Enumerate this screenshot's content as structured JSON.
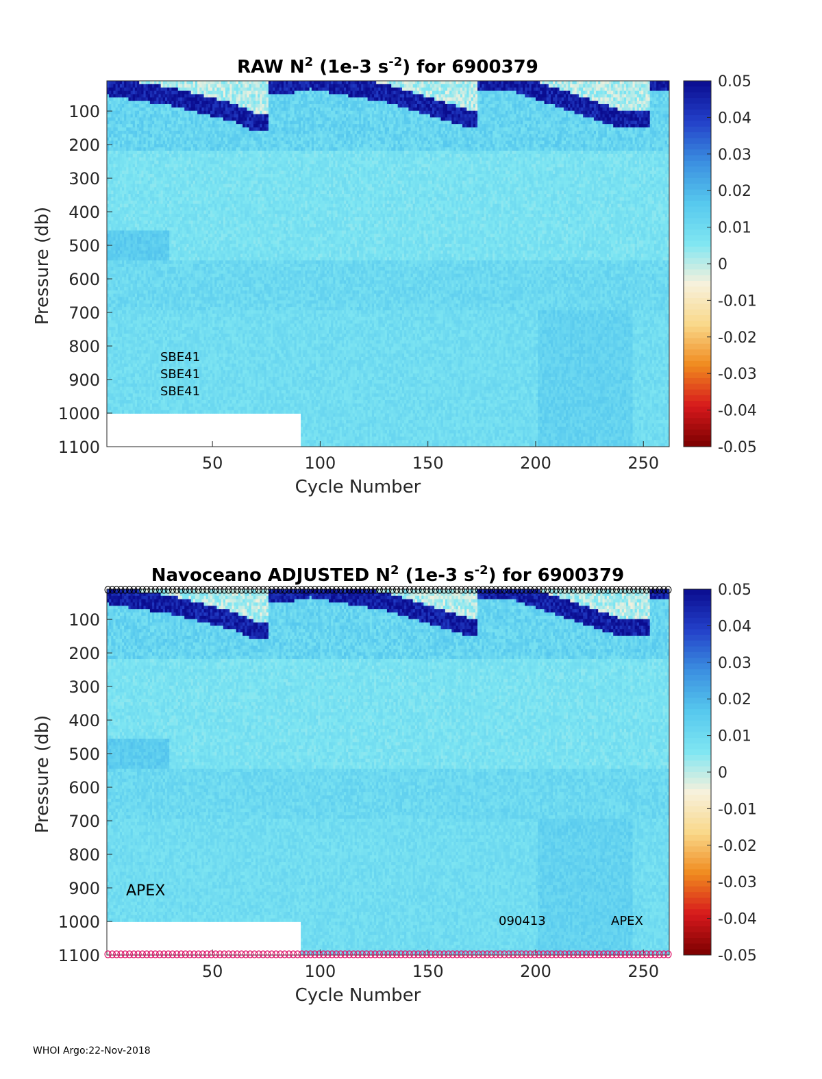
{
  "colormap": {
    "name": "jet-like diverging",
    "stops": [
      "#7a0000",
      "#d7191c",
      "#f08a1e",
      "#f9d88a",
      "#f7f1dc",
      "#7fe6f2",
      "#56c8ee",
      "#3b8fe0",
      "#2340c9",
      "#0a0c8f"
    ]
  },
  "chart_data": [
    {
      "type": "heatmap",
      "title": "RAW N² (1e-3 s⁻²) for 6900379",
      "title_parts": {
        "prefix": "RAW N",
        "exp1": "2",
        "mid": " (1e-3 s",
        "exp2": "-2",
        "suffix": ") for 6900379"
      },
      "xlabel": "Cycle Number",
      "ylabel": "Pressure (db)",
      "xlim": [
        1,
        261
      ],
      "ylim": [
        1100,
        10
      ],
      "xticks": [
        50,
        100,
        150,
        200,
        250
      ],
      "yticks": [
        100,
        200,
        300,
        400,
        500,
        600,
        700,
        800,
        900,
        1000,
        1100
      ],
      "clim": [
        -0.05,
        0.05
      ],
      "cticks": [
        "0.05",
        "0.04",
        "0.03",
        "0.02",
        "0.01",
        "0",
        "-0.01",
        "-0.02",
        "-0.03",
        "-0.04",
        "-0.05"
      ],
      "annotations": [
        "SBE41",
        "SBE41",
        "SBE41"
      ],
      "depth_limit_by_cycle": {
        "cycles_1_to_90": 1000,
        "cycles_91_to_261": 1100
      },
      "mixed_layer_depth_db": [
        {
          "cycle": 1,
          "depth": 40
        },
        {
          "cycle": 30,
          "depth": 70
        },
        {
          "cycle": 60,
          "depth": 120
        },
        {
          "cycle": 70,
          "depth": 150
        },
        {
          "cycle": 80,
          "depth": 40
        },
        {
          "cycle": 95,
          "depth": 20
        },
        {
          "cycle": 130,
          "depth": 60
        },
        {
          "cycle": 170,
          "depth": 140
        },
        {
          "cycle": 175,
          "depth": 30
        },
        {
          "cycle": 190,
          "depth": 30
        },
        {
          "cycle": 240,
          "depth": 140
        },
        {
          "cycle": 261,
          "depth": 30
        }
      ],
      "markers": {
        "top_row": false,
        "bottom_row": false
      }
    },
    {
      "type": "heatmap",
      "title": "Navoceano  ADJUSTED N² (1e-3 s⁻²) for 6900379",
      "title_parts": {
        "prefix": "Navoceano  ADJUSTED N",
        "exp1": "2",
        "mid": " (1e-3 s",
        "exp2": "-2",
        "suffix": ") for 6900379"
      },
      "xlabel": "Cycle Number",
      "ylabel": "Pressure (db)",
      "xlim": [
        1,
        261
      ],
      "ylim": [
        1100,
        10
      ],
      "xticks": [
        50,
        100,
        150,
        200,
        250
      ],
      "yticks": [
        100,
        200,
        300,
        400,
        500,
        600,
        700,
        800,
        900,
        1000,
        1100
      ],
      "clim": [
        -0.05,
        0.05
      ],
      "cticks": [
        "0.05",
        "0.04",
        "0.03",
        "0.02",
        "0.01",
        "0",
        "-0.01",
        "-0.02",
        "-0.03",
        "-0.04",
        "-0.05"
      ],
      "annotations": [
        "APEX",
        "090413",
        "APEX"
      ],
      "depth_limit_by_cycle": {
        "cycles_1_to_90": 1000,
        "cycles_91_to_261": 1100
      },
      "mixed_layer_depth_db": [
        {
          "cycle": 1,
          "depth": 40
        },
        {
          "cycle": 30,
          "depth": 70
        },
        {
          "cycle": 60,
          "depth": 120
        },
        {
          "cycle": 70,
          "depth": 150
        },
        {
          "cycle": 80,
          "depth": 40
        },
        {
          "cycle": 95,
          "depth": 20
        },
        {
          "cycle": 130,
          "depth": 60
        },
        {
          "cycle": 170,
          "depth": 140
        },
        {
          "cycle": 175,
          "depth": 30
        },
        {
          "cycle": 190,
          "depth": 30
        },
        {
          "cycle": 240,
          "depth": 140
        },
        {
          "cycle": 261,
          "depth": 30
        }
      ],
      "markers": {
        "top_row": true,
        "top_color": "#000000",
        "bottom_row": true,
        "bottom_color": "#e0186c"
      }
    }
  ],
  "footer": "WHOI Argo:22-Nov-2018"
}
